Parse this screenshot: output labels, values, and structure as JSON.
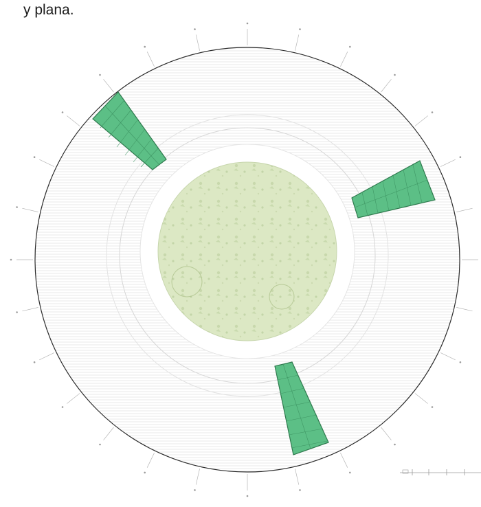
{
  "caption": "y plana.",
  "colors": {
    "ring_stroke": "#2b2b2b",
    "hatch_line": "#c9c9c9",
    "center_fill": "#dce8c4",
    "center_texture": "#b9cc9a",
    "panel_fill": "#5cbf86",
    "panel_stroke": "#2f7a4e"
  },
  "scale_bar": {
    "segments": 4
  }
}
